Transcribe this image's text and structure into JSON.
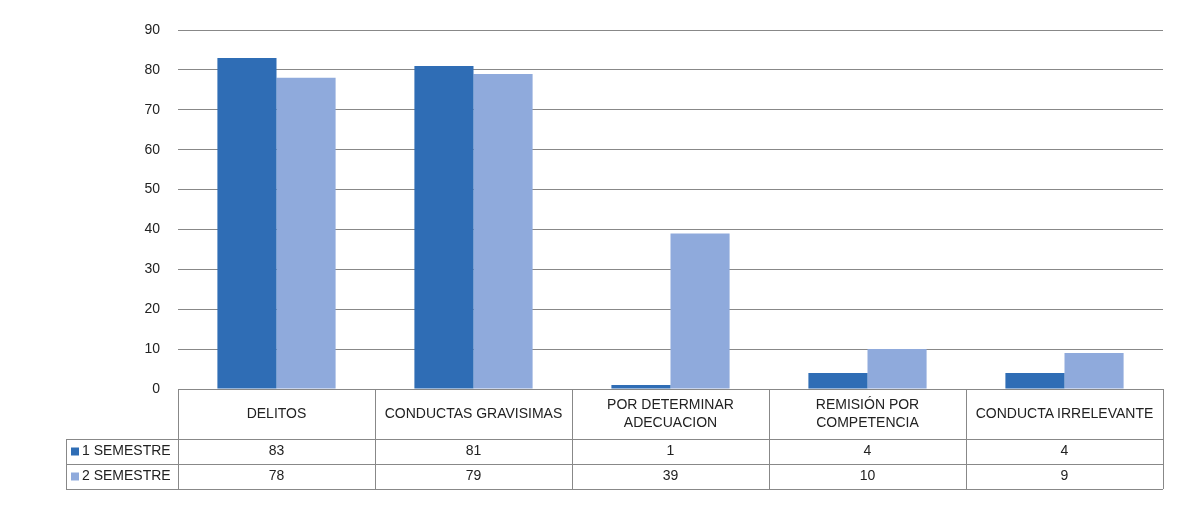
{
  "chart_data": {
    "type": "bar",
    "categories": [
      "DELITOS",
      "CONDUCTAS GRAVISIMAS",
      "POR DETERMINAR ADECUACION",
      "REMISIÓN POR COMPETENCIA",
      "CONDUCTA IRRELEVANTE"
    ],
    "series": [
      {
        "name": "1 SEMESTRE",
        "color": "#2f6db5",
        "values": [
          83,
          81,
          1,
          4,
          4
        ]
      },
      {
        "name": "2 SEMESTRE",
        "color": "#8faadc",
        "values": [
          78,
          79,
          39,
          10,
          9
        ]
      }
    ],
    "ylim": [
      0,
      90
    ],
    "yticks": [
      0,
      10,
      20,
      30,
      40,
      50,
      60,
      70,
      80,
      90
    ],
    "grid": "y",
    "legend": "bottom left",
    "data_labels": true
  }
}
